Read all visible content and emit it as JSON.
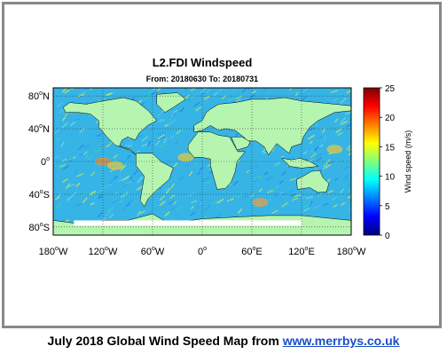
{
  "figure": {
    "title": "L2.FDI Windspeed",
    "subtitle": "From: 20180630 To: 20180731"
  },
  "map": {
    "lat_ticks": [
      {
        "value": 80,
        "label": "80",
        "hemi": "N"
      },
      {
        "value": 40,
        "label": "40",
        "hemi": "N"
      },
      {
        "value": 0,
        "label": "0",
        "hemi": ""
      },
      {
        "value": -40,
        "label": "40",
        "hemi": "S"
      },
      {
        "value": -80,
        "label": "80",
        "hemi": "S"
      }
    ],
    "lon_ticks": [
      {
        "value": -180,
        "label": "180",
        "hemi": "W"
      },
      {
        "value": -120,
        "label": "120",
        "hemi": "W"
      },
      {
        "value": -60,
        "label": "60",
        "hemi": "W"
      },
      {
        "value": 0,
        "label": "0",
        "hemi": ""
      },
      {
        "value": 60,
        "label": "60",
        "hemi": "E"
      },
      {
        "value": 120,
        "label": "120",
        "hemi": "E"
      },
      {
        "value": 180,
        "label": "180",
        "hemi": "W"
      }
    ],
    "land_color": "#b6f5b0",
    "ocean_color": "#36b4e6"
  },
  "colorbar": {
    "label": "Wind speed (m/s)",
    "ticks": [
      0,
      5,
      10,
      15,
      20,
      25
    ],
    "range": [
      0,
      25
    ],
    "colors": [
      "#00007f",
      "#0000ff",
      "#007fff",
      "#00ffff",
      "#7fff7f",
      "#ffff00",
      "#ff7f00",
      "#ff0000",
      "#7f0000"
    ]
  },
  "caption": {
    "text": "July 2018 Global Wind Speed Map from ",
    "link": "www.merrbys.co.uk"
  }
}
